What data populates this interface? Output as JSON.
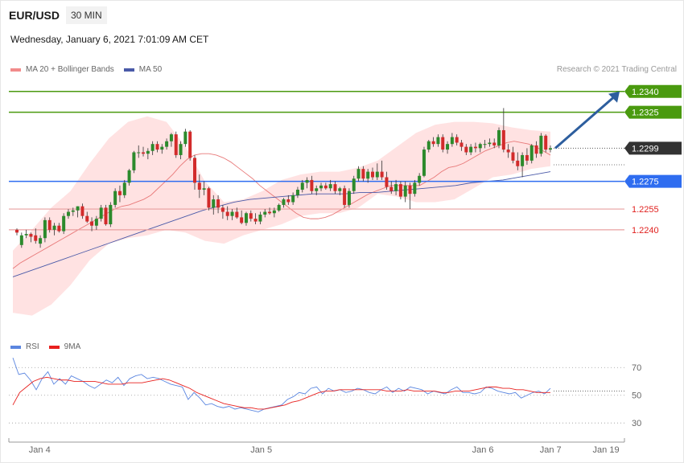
{
  "header": {
    "symbol": "EUR/USD",
    "interval": "30 MIN",
    "datetime": "Wednesday, January 6, 2021 7:01:09 AM CET",
    "credit": "Research © 2021 Trading Central"
  },
  "legend": {
    "price": [
      {
        "label": "MA 20 + Bollinger Bands"
      },
      {
        "label": "MA 50"
      }
    ],
    "rsi": [
      {
        "label": "RSI"
      },
      {
        "label": "9MA"
      }
    ]
  },
  "chart_data": {
    "type": "candlestick",
    "ylim": [
      1.2165,
      1.2348
    ],
    "last_price": 1.2299,
    "levels": [
      {
        "value": 1.234,
        "label": "1.2340",
        "kind": "resistance"
      },
      {
        "value": 1.2325,
        "label": "1.2325",
        "kind": "resistance"
      },
      {
        "value": 1.2275,
        "label": "1.2275",
        "kind": "pivot"
      },
      {
        "value": 1.2255,
        "label": "1.2255",
        "kind": "support"
      },
      {
        "value": 1.224,
        "label": "1.2240",
        "kind": "support"
      }
    ],
    "last_price_label": "1.2299",
    "forecast_arrow": {
      "from": 1.2299,
      "to": 1.234
    },
    "candles": [
      [
        1.224,
        1.2241,
        1.2236,
        1.2238
      ],
      [
        1.2229,
        1.2238,
        1.2227,
        1.2236
      ],
      [
        1.2236,
        1.224,
        1.2234,
        1.2237
      ],
      [
        1.2237,
        1.2238,
        1.2231,
        1.2235
      ],
      [
        1.2236,
        1.2241,
        1.223,
        1.2232
      ],
      [
        1.223,
        1.2236,
        1.2227,
        1.2234
      ],
      [
        1.2234,
        1.2249,
        1.2231,
        1.2247
      ],
      [
        1.2247,
        1.2249,
        1.2238,
        1.224
      ],
      [
        1.224,
        1.2245,
        1.2236,
        1.2243
      ],
      [
        1.2243,
        1.2245,
        1.2238,
        1.2239
      ],
      [
        1.2239,
        1.2252,
        1.2237,
        1.225
      ],
      [
        1.225,
        1.2255,
        1.2248,
        1.2253
      ],
      [
        1.2253,
        1.2256,
        1.225,
        1.2254
      ],
      [
        1.2254,
        1.2257,
        1.2249,
        1.2257
      ],
      [
        1.2257,
        1.2259,
        1.2248,
        1.225
      ],
      [
        1.225,
        1.2253,
        1.2245,
        1.2246
      ],
      [
        1.2246,
        1.2249,
        1.2239,
        1.2243
      ],
      [
        1.2243,
        1.225,
        1.224,
        1.2248
      ],
      [
        1.2248,
        1.2258,
        1.2246,
        1.2256
      ],
      [
        1.2256,
        1.2258,
        1.2243,
        1.2244
      ],
      [
        1.2244,
        1.226,
        1.2242,
        1.2258
      ],
      [
        1.2258,
        1.227,
        1.2256,
        1.2268
      ],
      [
        1.2268,
        1.2272,
        1.226,
        1.2265
      ],
      [
        1.2265,
        1.2276,
        1.2263,
        1.2274
      ],
      [
        1.2274,
        1.2284,
        1.2272,
        1.2283
      ],
      [
        1.2283,
        1.2297,
        1.2281,
        1.2296
      ],
      [
        1.2296,
        1.2301,
        1.2292,
        1.2296
      ],
      [
        1.2296,
        1.23,
        1.2293,
        1.2295
      ],
      [
        1.2295,
        1.2299,
        1.2291,
        1.2297
      ],
      [
        1.2297,
        1.2304,
        1.2294,
        1.2302
      ],
      [
        1.2302,
        1.2304,
        1.2296,
        1.2298
      ],
      [
        1.2298,
        1.2302,
        1.2295,
        1.23
      ],
      [
        1.23,
        1.2306,
        1.2298,
        1.2304
      ],
      [
        1.2304,
        1.231,
        1.23,
        1.2309
      ],
      [
        1.2309,
        1.2311,
        1.2292,
        1.2294
      ],
      [
        1.2294,
        1.2304,
        1.2291,
        1.2302
      ],
      [
        1.2302,
        1.2313,
        1.23,
        1.2311
      ],
      [
        1.2311,
        1.2312,
        1.229,
        1.2292
      ],
      [
        1.2292,
        1.2294,
        1.2269,
        1.2274
      ],
      [
        1.2274,
        1.228,
        1.2263,
        1.2269
      ],
      [
        1.2269,
        1.2275,
        1.2265,
        1.227
      ],
      [
        1.227,
        1.2271,
        1.2254,
        1.2256
      ],
      [
        1.2256,
        1.2265,
        1.2251,
        1.2262
      ],
      [
        1.2262,
        1.2265,
        1.2252,
        1.2256
      ],
      [
        1.2256,
        1.2258,
        1.2248,
        1.2253
      ],
      [
        1.2253,
        1.2257,
        1.2247,
        1.225
      ],
      [
        1.225,
        1.2255,
        1.2247,
        1.2253
      ],
      [
        1.2253,
        1.2256,
        1.2248,
        1.2249
      ],
      [
        1.2249,
        1.2254,
        1.2244,
        1.2245
      ],
      [
        1.2245,
        1.2253,
        1.2243,
        1.2252
      ],
      [
        1.2252,
        1.2254,
        1.2246,
        1.2248
      ],
      [
        1.2248,
        1.2252,
        1.2244,
        1.2246
      ],
      [
        1.2246,
        1.2253,
        1.2244,
        1.2251
      ],
      [
        1.2251,
        1.2255,
        1.2249,
        1.2253
      ],
      [
        1.2253,
        1.2256,
        1.2251,
        1.2252
      ],
      [
        1.2252,
        1.2256,
        1.2249,
        1.2254
      ],
      [
        1.2254,
        1.2259,
        1.2253,
        1.2258
      ],
      [
        1.2258,
        1.2263,
        1.2256,
        1.2262
      ],
      [
        1.2262,
        1.2265,
        1.2258,
        1.226
      ],
      [
        1.226,
        1.2267,
        1.2258,
        1.2265
      ],
      [
        1.2265,
        1.2271,
        1.2263,
        1.2269
      ],
      [
        1.2269,
        1.2276,
        1.2267,
        1.2274
      ],
      [
        1.2274,
        1.2278,
        1.227,
        1.2276
      ],
      [
        1.2276,
        1.2279,
        1.2266,
        1.2268
      ],
      [
        1.2268,
        1.2272,
        1.2265,
        1.227
      ],
      [
        1.227,
        1.2274,
        1.2268,
        1.2272
      ],
      [
        1.2272,
        1.2274,
        1.2269,
        1.227
      ],
      [
        1.227,
        1.2276,
        1.2268,
        1.2273
      ],
      [
        1.2273,
        1.2275,
        1.2266,
        1.2268
      ],
      [
        1.2268,
        1.2271,
        1.2265,
        1.227
      ],
      [
        1.227,
        1.2272,
        1.2256,
        1.2258
      ],
      [
        1.2258,
        1.227,
        1.2256,
        1.2268
      ],
      [
        1.2268,
        1.2279,
        1.2266,
        1.2277
      ],
      [
        1.2277,
        1.2286,
        1.2275,
        1.2284
      ],
      [
        1.2284,
        1.2286,
        1.2275,
        1.2277
      ],
      [
        1.2277,
        1.2284,
        1.2274,
        1.2282
      ],
      [
        1.2282,
        1.2285,
        1.2276,
        1.2278
      ],
      [
        1.2278,
        1.2288,
        1.2276,
        1.2282
      ],
      [
        1.2282,
        1.229,
        1.2276,
        1.2278
      ],
      [
        1.2278,
        1.2282,
        1.2269,
        1.2271
      ],
      [
        1.2271,
        1.2275,
        1.2266,
        1.2268
      ],
      [
        1.2268,
        1.2276,
        1.2265,
        1.2273
      ],
      [
        1.2273,
        1.2275,
        1.2262,
        1.2264
      ],
      [
        1.2264,
        1.2275,
        1.226,
        1.2272
      ],
      [
        1.2272,
        1.2274,
        1.2255,
        1.2266
      ],
      [
        1.2266,
        1.2276,
        1.2264,
        1.2274
      ],
      [
        1.2274,
        1.2281,
        1.2272,
        1.2279
      ],
      [
        1.2279,
        1.23,
        1.2278,
        1.2298
      ],
      [
        1.2298,
        1.2305,
        1.2296,
        1.2304
      ],
      [
        1.2304,
        1.2307,
        1.23,
        1.2302
      ],
      [
        1.2302,
        1.2309,
        1.23,
        1.2307
      ],
      [
        1.2307,
        1.2309,
        1.2296,
        1.2298
      ],
      [
        1.2298,
        1.2304,
        1.2295,
        1.2302
      ],
      [
        1.2302,
        1.231,
        1.23,
        1.2307
      ],
      [
        1.2307,
        1.2309,
        1.2301,
        1.2303
      ],
      [
        1.2303,
        1.2305,
        1.2297,
        1.23
      ],
      [
        1.23,
        1.2302,
        1.2294,
        1.2296
      ],
      [
        1.2296,
        1.2302,
        1.2294,
        1.23
      ],
      [
        1.23,
        1.2303,
        1.2296,
        1.2299
      ],
      [
        1.2299,
        1.2303,
        1.2296,
        1.2302
      ],
      [
        1.2302,
        1.2305,
        1.2299,
        1.2302
      ],
      [
        1.2302,
        1.2306,
        1.23,
        1.2303
      ],
      [
        1.2303,
        1.2306,
        1.2299,
        1.2301
      ],
      [
        1.2301,
        1.2314,
        1.2299,
        1.2312
      ],
      [
        1.2312,
        1.2328,
        1.2296,
        1.2298
      ],
      [
        1.2298,
        1.2302,
        1.2292,
        1.2296
      ],
      [
        1.2296,
        1.23,
        1.2288,
        1.229
      ],
      [
        1.229,
        1.2296,
        1.2283,
        1.2286
      ],
      [
        1.2286,
        1.2296,
        1.2278,
        1.2294
      ],
      [
        1.2294,
        1.2299,
        1.2287,
        1.229
      ],
      [
        1.229,
        1.2302,
        1.2288,
        1.2301
      ],
      [
        1.2301,
        1.2304,
        1.2292,
        1.2295
      ],
      [
        1.2295,
        1.231,
        1.2293,
        1.2308
      ],
      [
        1.2308,
        1.2309,
        1.2296,
        1.2298
      ],
      [
        1.2298,
        1.2301,
        1.2296,
        1.2299
      ]
    ],
    "ma20": [
      1.2212,
      1.2216,
      1.2219,
      1.2222,
      1.2225,
      1.2228,
      1.2231,
      1.2234,
      1.2237,
      1.224,
      1.2243,
      1.2246,
      1.2249,
      1.2252,
      1.2255,
      1.2257,
      1.2258,
      1.226,
      1.2262,
      1.2265,
      1.227,
      1.2275,
      1.228,
      1.2286,
      1.2291,
      1.2294,
      1.2295,
      1.2295,
      1.2294,
      1.2292,
      1.2289,
      1.2285,
      1.2281,
      1.2277,
      1.2272,
      1.2268,
      1.2264,
      1.226,
      1.2256,
      1.2252,
      1.2249,
      1.2248,
      1.2248,
      1.2249,
      1.2251,
      1.2254,
      1.2257,
      1.226,
      1.2263,
      1.2266,
      1.2268,
      1.227,
      1.2272,
      1.2272,
      1.2272,
      1.2272,
      1.2272,
      1.2275,
      1.2278,
      1.2282,
      1.2285,
      1.2286,
      1.2288,
      1.2291,
      1.2294,
      1.2297,
      1.2299,
      1.2301,
      1.2303,
      1.2304,
      1.2303,
      1.2302,
      1.23,
      1.2297,
      1.2294
    ],
    "ma20_x": [
      16,
      22,
      28,
      34,
      40,
      46,
      52,
      58,
      64,
      70,
      76,
      82,
      88,
      94,
      100,
      106,
      112,
      118,
      124,
      130,
      136,
      142,
      148,
      154,
      160,
      166,
      172,
      178,
      184,
      190,
      196,
      202,
      208,
      214,
      220,
      226,
      232,
      238,
      244,
      250,
      256,
      262,
      268,
      274,
      280,
      286,
      292,
      298,
      304,
      310,
      316,
      322,
      328,
      334,
      340,
      346,
      352,
      358,
      364,
      370,
      376,
      382,
      388,
      394,
      400,
      406,
      412,
      418,
      424,
      430,
      436,
      442,
      448,
      454,
      460
    ],
    "ma50": [
      1.2206,
      1.221,
      1.2214,
      1.2218,
      1.2222,
      1.2226,
      1.223,
      1.2234,
      1.2238,
      1.2242,
      1.2246,
      1.225,
      1.2254,
      1.2257,
      1.226,
      1.2262,
      1.2263,
      1.2264,
      1.2265,
      1.2266,
      1.2266,
      1.2266,
      1.2267,
      1.2267,
      1.2268,
      1.2269,
      1.227,
      1.2271,
      1.2272,
      1.2274,
      1.2275,
      1.2276,
      1.2278,
      1.228,
      1.2282
    ],
    "bb_upper": [
      1.2225,
      1.224,
      1.2256,
      1.2268,
      1.2288,
      1.2306,
      1.2318,
      1.2322,
      1.2318,
      1.23,
      1.2275,
      1.226,
      1.2262,
      1.2268,
      1.2276,
      1.228,
      1.2282,
      1.2282,
      1.2285,
      1.229,
      1.23,
      1.231,
      1.2316,
      1.2318,
      1.2318,
      1.2317,
      1.2314,
      1.2312,
      1.2311
    ],
    "bb_lower": [
      1.218,
      1.2178,
      1.2186,
      1.22,
      1.2218,
      1.223,
      1.2234,
      1.2236,
      1.224,
      1.2238,
      1.2232,
      1.223,
      1.2236,
      1.224,
      1.2244,
      1.225,
      1.2252,
      1.2252,
      1.2256,
      1.2266,
      1.2264,
      1.226,
      1.226,
      1.2262,
      1.227,
      1.2278,
      1.228,
      1.2284,
      1.2286
    ],
    "rsi": {
      "ylim": [
        22,
        80
      ],
      "ticks": [
        70,
        50,
        30
      ],
      "tick_labels": [
        "70",
        "50",
        "30"
      ],
      "rsi_values": [
        77,
        65,
        66,
        61,
        54,
        62,
        67,
        58,
        62,
        58,
        64,
        62,
        60,
        57,
        55,
        58,
        61,
        59,
        63,
        57,
        62,
        64,
        65,
        62,
        63,
        62,
        60,
        58,
        57,
        56,
        47,
        52,
        48,
        43,
        44,
        42,
        41,
        42,
        40,
        41,
        40,
        39,
        38,
        40,
        41,
        42,
        43,
        47,
        49,
        52,
        51,
        55,
        56,
        51,
        55,
        53,
        54,
        52,
        53,
        55,
        54,
        52,
        51,
        54,
        56,
        52,
        55,
        53,
        56,
        55,
        54,
        51,
        53,
        52,
        51,
        54,
        56,
        52,
        52,
        51,
        52,
        56,
        55,
        53,
        52,
        51,
        52,
        48,
        50,
        52,
        53,
        51,
        55
      ],
      "rsi_ma": [
        43,
        52,
        56,
        60,
        62,
        63,
        62,
        61,
        61,
        60,
        60,
        60,
        60,
        59,
        58,
        58,
        58,
        59,
        59,
        59,
        60,
        61,
        62,
        61,
        59,
        57,
        55,
        52,
        50,
        48,
        46,
        44,
        43,
        42,
        41,
        41,
        40,
        40,
        41,
        42,
        43,
        45,
        46,
        48,
        50,
        52,
        53,
        53,
        54,
        54,
        54,
        54,
        54,
        54,
        54,
        53,
        53,
        53,
        54,
        53,
        53,
        53,
        53,
        52,
        52,
        53,
        53,
        53,
        54,
        55,
        56,
        56,
        55,
        55,
        54,
        54,
        53,
        52,
        52,
        52
      ]
    },
    "x_ticks": [
      {
        "label": "Jan 4",
        "pos": 0.05
      },
      {
        "label": "Jan 5",
        "pos": 0.41
      },
      {
        "label": "Jan 6",
        "pos": 0.77
      },
      {
        "label": "Jan 7",
        "pos": 0.88
      },
      {
        "label": "Jan 19",
        "pos": 0.97
      }
    ],
    "colors": {
      "up": "#2c8a2c",
      "down": "#d22b2b",
      "bollinger_fill": "#ffd8d8",
      "bollinger_legend": "#f28b8b",
      "ma20": "#e87979",
      "ma50": "#4a5aa8",
      "resistance": "#4a9a0f",
      "pivot": "#2f6df0",
      "support": "#e8a0a0",
      "support_text": "#e0201e",
      "last_price": "#333333",
      "arrow": "#2d5e9e",
      "rsi": "#5b86e0",
      "rsi_ma": "#e8201e"
    }
  }
}
